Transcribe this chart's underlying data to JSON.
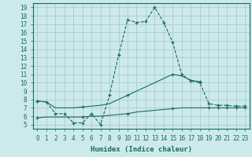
{
  "xlabel": "Humidex (Indice chaleur)",
  "bg_color": "#cceaea",
  "grid_color": "#aacccc",
  "line_color": "#1a6b5a",
  "xlim": [
    -0.5,
    23.5
  ],
  "ylim": [
    4.5,
    19.5
  ],
  "xticks": [
    0,
    1,
    2,
    3,
    4,
    5,
    6,
    7,
    8,
    9,
    10,
    11,
    12,
    13,
    14,
    15,
    16,
    17,
    18,
    19,
    20,
    21,
    22,
    23
  ],
  "yticks": [
    5,
    6,
    7,
    8,
    9,
    10,
    11,
    12,
    13,
    14,
    15,
    16,
    17,
    18,
    19
  ],
  "line_dashed_x": [
    0,
    1,
    2,
    3,
    4,
    5,
    6,
    7,
    8,
    9,
    10,
    11,
    12,
    13,
    14,
    15,
    16,
    17,
    18,
    19,
    20,
    21,
    22,
    23
  ],
  "line_dashed_y": [
    7.8,
    7.7,
    6.3,
    6.3,
    5.2,
    5.2,
    6.3,
    5.0,
    8.5,
    13.3,
    17.5,
    17.2,
    17.3,
    19.0,
    17.2,
    14.8,
    11.0,
    10.2,
    10.0,
    7.5,
    7.3,
    7.3,
    7.2,
    7.2
  ],
  "line_rise_x": [
    0,
    1,
    2,
    3,
    4,
    5,
    6,
    7,
    8,
    9,
    10,
    11,
    12,
    13,
    14,
    15,
    16,
    17,
    18
  ],
  "line_rise_y": [
    7.8,
    7.7,
    7.0,
    7.0,
    7.0,
    7.1,
    7.2,
    7.3,
    7.5,
    8.0,
    8.5,
    9.0,
    9.5,
    10.0,
    10.5,
    11.0,
    10.8,
    10.3,
    10.1
  ],
  "line_flat_x": [
    0,
    1,
    2,
    3,
    4,
    5,
    6,
    7,
    8,
    9,
    10,
    11,
    12,
    13,
    14,
    15,
    16,
    17,
    18,
    19,
    20,
    21,
    22,
    23
  ],
  "line_flat_y": [
    5.8,
    5.9,
    5.9,
    5.9,
    5.9,
    5.9,
    6.0,
    6.0,
    6.1,
    6.2,
    6.3,
    6.5,
    6.6,
    6.7,
    6.8,
    6.9,
    7.0,
    7.0,
    7.0,
    7.0,
    7.0,
    7.0,
    7.0,
    7.0
  ]
}
